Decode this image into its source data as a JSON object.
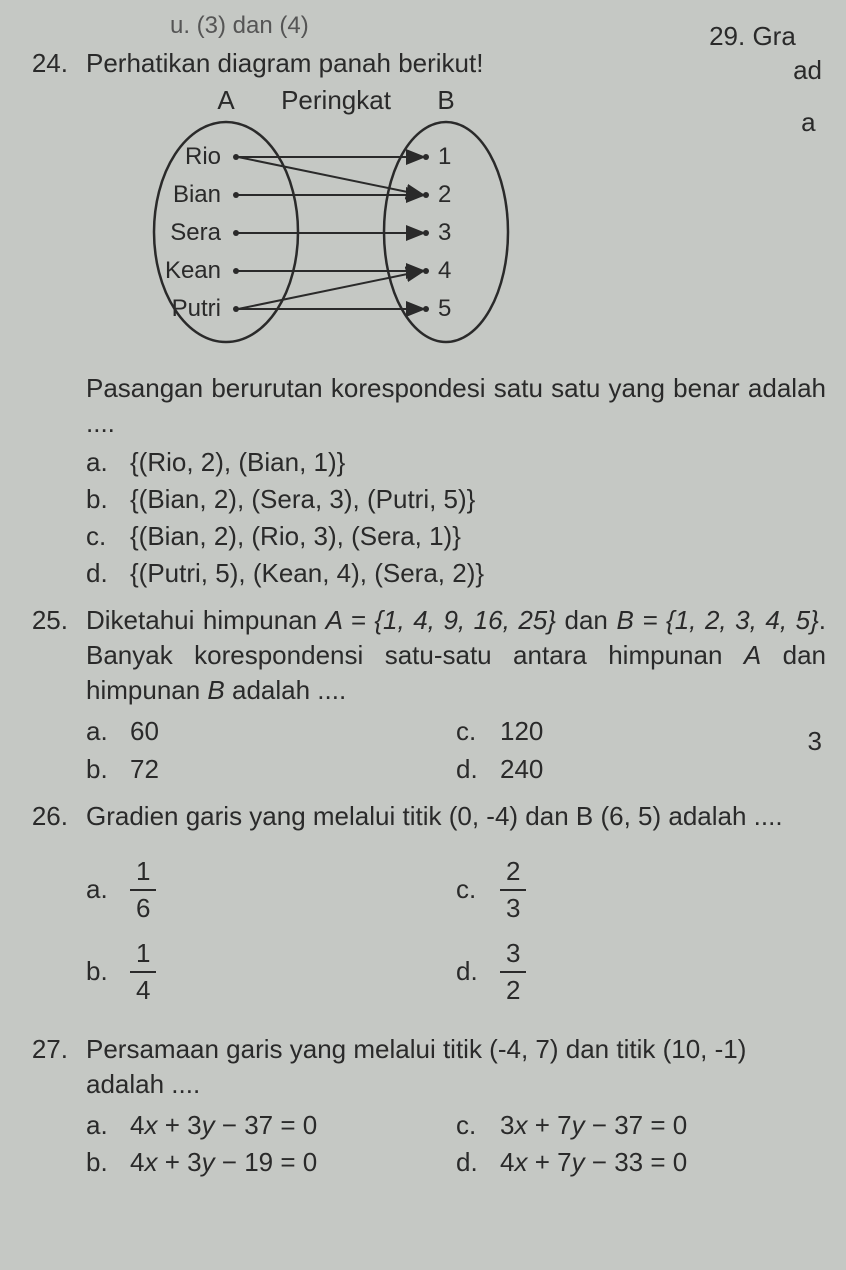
{
  "cutoff_top": "u.  (3) dan (4)",
  "right_fragments": {
    "l1": "29.  Gra",
    "l2": "ad",
    "l3": "a"
  },
  "q24": {
    "num": "24.",
    "text": "Perhatikan diagram panah berikut!",
    "diagram": {
      "label_A": "A",
      "label_rel": "Peringkat",
      "label_B": "B",
      "left_nodes": [
        "Rio",
        "Bian",
        "Sera",
        "Kean",
        "Putri"
      ],
      "right_nodes": [
        "1",
        "2",
        "3",
        "4",
        "5"
      ],
      "edges": [
        [
          0,
          0
        ],
        [
          1,
          1
        ],
        [
          2,
          2
        ],
        [
          3,
          3
        ],
        [
          4,
          4
        ],
        [
          0,
          1
        ],
        [
          4,
          3
        ]
      ],
      "stroke": "#2a2a2a",
      "fill": "none"
    },
    "para": "Pasangan berurutan korespondesi satu satu yang benar adalah ....",
    "opts": {
      "a": "{(Rio, 2), (Bian, 1)}",
      "b": "{(Bian, 2), (Sera, 3), (Putri, 5)}",
      "c": "{(Bian, 2), (Rio, 3), (Sera, 1)}",
      "d": "{(Putri, 5), (Kean, 4), (Sera, 2)}"
    }
  },
  "q25": {
    "num": "25.",
    "text1": "Diketahui himpunan ",
    "eqA": "A = {1, 4, 9, 16, 25}",
    "text2": " dan ",
    "eqB": "B = {1, 2, 3, 4, 5}",
    "text3": ". Banyak korespondensi satu-satu antara himpunan ",
    "iA": "A",
    "text4": " dan himpunan ",
    "iB": "B",
    "text5": " adalah ....",
    "opts": {
      "a": "60",
      "b": "72",
      "c": "120",
      "d": "240"
    },
    "side": "3"
  },
  "q26": {
    "num": "26.",
    "text": "Gradien garis yang melalui titik (0, -4) dan B (6, 5) adalah ....",
    "opts": {
      "a": {
        "n": "1",
        "d": "6"
      },
      "b": {
        "n": "1",
        "d": "4"
      },
      "c": {
        "n": "2",
        "d": "3"
      },
      "d": {
        "n": "3",
        "d": "2"
      }
    }
  },
  "q27": {
    "num": "27.",
    "text": "Persamaan garis yang melalui titik (-4, 7) dan titik (10, -1) adalah ....",
    "opts": {
      "a": "4x + 3y − 37 = 0",
      "b": "4x + 3y − 19 = 0",
      "c": "3x + 7y − 37 = 0",
      "d": "4x + 7y − 33 = 0"
    }
  },
  "letters": {
    "a": "a.",
    "b": "b.",
    "c": "c.",
    "d": "d."
  }
}
